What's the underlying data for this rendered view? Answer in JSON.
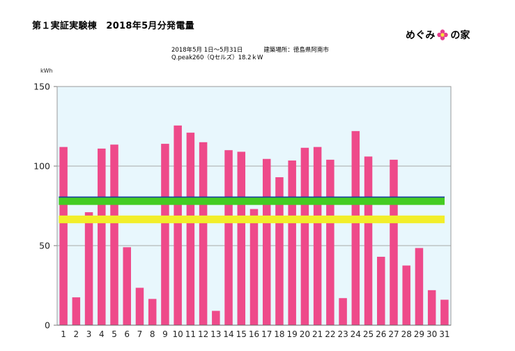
{
  "header": {
    "title": "第１実証実験棟　2018年5月分発電量",
    "brand_left": "めぐみ",
    "brand_right": "の家",
    "period": "2018年5月 1日～5月31日",
    "location": "建築場所：徳島県阿南市",
    "panel": "Q.peak260（Qセルズ）18.2ｋW"
  },
  "colors": {
    "bar": "#ee4a8a",
    "plot_bg": "#e8f7fd",
    "green_line": "#44cc22",
    "yellow_line": "#f2ee2a",
    "blue_line": "#1a3ea0",
    "logo_flower": "#e53f8e"
  },
  "chart_data": {
    "type": "bar",
    "ylabel": "kWh",
    "ylim": [
      0,
      150
    ],
    "yticks": [
      0,
      50,
      100,
      150
    ],
    "grid": true,
    "categories": [
      "1",
      "2",
      "3",
      "4",
      "5",
      "6",
      "7",
      "8",
      "9",
      "10",
      "11",
      "12",
      "13",
      "14",
      "15",
      "16",
      "17",
      "18",
      "19",
      "20",
      "21",
      "22",
      "23",
      "24",
      "25",
      "26",
      "27",
      "28",
      "29",
      "30",
      "31"
    ],
    "values": [
      112,
      17.5,
      71,
      111,
      113.5,
      49,
      23.5,
      16.5,
      114,
      125.5,
      121,
      115,
      9,
      110,
      109,
      73,
      104.5,
      93,
      103.5,
      111.5,
      112,
      104,
      17,
      122,
      106,
      43,
      104,
      37.5,
      48.5,
      22,
      16
    ],
    "reference_lines": [
      {
        "color_key": "blue_line",
        "value": 80.5
      },
      {
        "color_key": "green_line",
        "value": 78
      },
      {
        "color_key": "yellow_line",
        "value": 66.5
      }
    ]
  }
}
